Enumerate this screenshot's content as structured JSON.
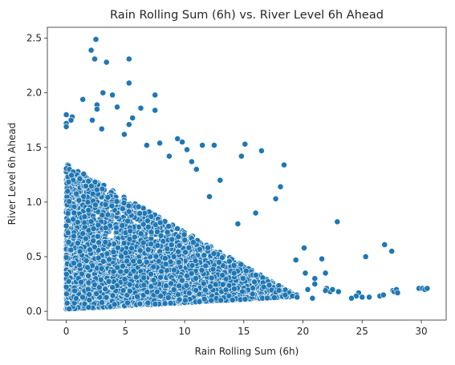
{
  "chart_data": {
    "type": "scatter",
    "title": "Rain Rolling Sum (6h) vs. River Level 6h Ahead",
    "xlabel": "Rain Rolling Sum (6h)",
    "ylabel": "River Level 6h Ahead",
    "xlim": [
      -1.6,
      32.1
    ],
    "ylim": [
      -0.08,
      2.6
    ],
    "x_ticks": [
      0,
      5,
      10,
      15,
      20,
      25,
      30
    ],
    "x_tick_labels": [
      "0",
      "5",
      "10",
      "15",
      "20",
      "25",
      "30"
    ],
    "y_ticks": [
      0.0,
      0.5,
      1.0,
      1.5,
      2.0,
      2.5
    ],
    "y_tick_labels": [
      "0.0",
      "0.5",
      "1.0",
      "1.5",
      "2.0",
      "2.5"
    ],
    "grid": false,
    "marker_color": "#1f77b4",
    "marker_edge_color": "#ffffff",
    "dense_cluster_points": 5500,
    "series": [
      {
        "points": [
          [
            0.0,
            1.8
          ],
          [
            0.0,
            1.72
          ],
          [
            0.0,
            1.69
          ],
          [
            0.5,
            1.78
          ],
          [
            0.4,
            1.75
          ],
          [
            1.4,
            1.94
          ],
          [
            2.1,
            2.39
          ],
          [
            2.5,
            2.49
          ],
          [
            2.4,
            2.31
          ],
          [
            3.4,
            2.28
          ],
          [
            5.3,
            2.31
          ],
          [
            5.3,
            2.09
          ],
          [
            3.1,
            2.0
          ],
          [
            3.9,
            1.98
          ],
          [
            2.2,
            1.75
          ],
          [
            2.6,
            1.89
          ],
          [
            2.6,
            1.85
          ],
          [
            4.3,
            1.87
          ],
          [
            3.0,
            1.67
          ],
          [
            4.9,
            1.62
          ],
          [
            5.3,
            1.71
          ],
          [
            5.6,
            1.77
          ],
          [
            6.3,
            1.86
          ],
          [
            7.5,
            1.98
          ],
          [
            7.5,
            1.84
          ],
          [
            9.4,
            1.58
          ],
          [
            7.9,
            1.54
          ],
          [
            9.8,
            1.55
          ],
          [
            10.2,
            1.48
          ],
          [
            11.5,
            1.52
          ],
          [
            12.5,
            1.52
          ],
          [
            14.8,
            1.42
          ],
          [
            15.1,
            1.53
          ],
          [
            16.5,
            1.47
          ],
          [
            18.4,
            1.34
          ],
          [
            17.7,
            1.03
          ],
          [
            18.1,
            1.14
          ],
          [
            22.9,
            0.82
          ],
          [
            25.3,
            0.5
          ],
          [
            26.9,
            0.61
          ],
          [
            27.5,
            0.55
          ],
          [
            21.6,
            0.48
          ],
          [
            20.1,
            0.58
          ],
          [
            19.4,
            0.47
          ],
          [
            20.2,
            0.35
          ],
          [
            21.0,
            0.3
          ],
          [
            21.9,
            0.35
          ],
          [
            21.0,
            0.25
          ],
          [
            20.4,
            0.2
          ],
          [
            22.0,
            0.21
          ],
          [
            22.3,
            0.18
          ],
          [
            21.9,
            0.19
          ],
          [
            22.5,
            0.2
          ],
          [
            23.0,
            0.18
          ],
          [
            24.7,
            0.17
          ],
          [
            24.5,
            0.14
          ],
          [
            24.1,
            0.12
          ],
          [
            25.0,
            0.13
          ],
          [
            25.6,
            0.13
          ],
          [
            26.5,
            0.14
          ],
          [
            26.8,
            0.15
          ],
          [
            27.6,
            0.19
          ],
          [
            27.7,
            0.18
          ],
          [
            27.9,
            0.2
          ],
          [
            28.0,
            0.17
          ],
          [
            29.8,
            0.21
          ],
          [
            30.1,
            0.21
          ],
          [
            30.3,
            0.2
          ],
          [
            30.5,
            0.21
          ],
          [
            19.5,
            0.13
          ],
          [
            18.5,
            0.15
          ],
          [
            20.8,
            0.12
          ],
          [
            16.0,
            0.9
          ],
          [
            14.5,
            0.8
          ],
          [
            13.0,
            1.2
          ],
          [
            11.0,
            1.3
          ],
          [
            12.1,
            1.05
          ],
          [
            10.6,
            1.37
          ],
          [
            8.7,
            1.42
          ],
          [
            6.8,
            1.52
          ]
        ]
      }
    ]
  }
}
